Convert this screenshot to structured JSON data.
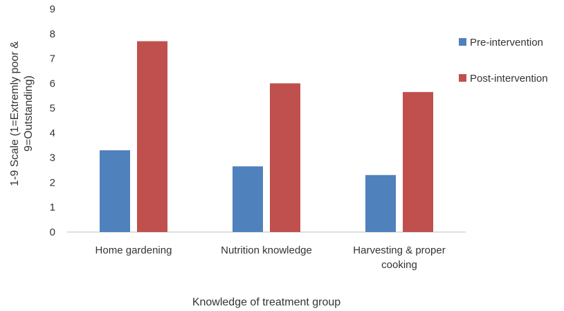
{
  "chart_data": {
    "type": "bar",
    "categories": [
      "Home gardening",
      "Nutrition knowledge",
      "Harvesting & proper cooking"
    ],
    "category_lines": [
      [
        "Home gardening"
      ],
      [
        "Nutrition knowledge"
      ],
      [
        "Harvesting & proper",
        "cooking"
      ]
    ],
    "series": [
      {
        "name": "Pre-intervention",
        "values": [
          3.3,
          2.65,
          2.3
        ],
        "color": "#4F81BD"
      },
      {
        "name": "Post-intervention",
        "values": [
          7.7,
          6.0,
          5.65
        ],
        "color": "#C0504D"
      }
    ],
    "xlabel": "Knowledge of treatment group",
    "ylabel_lines": [
      "1-9 Scale (1=Extremly poor &",
      "9=Outstanding)"
    ],
    "ylim": [
      0,
      9
    ],
    "yticks": [
      0,
      1,
      2,
      3,
      4,
      5,
      6,
      7,
      8,
      9
    ],
    "grid": false,
    "legend_position": "right"
  }
}
